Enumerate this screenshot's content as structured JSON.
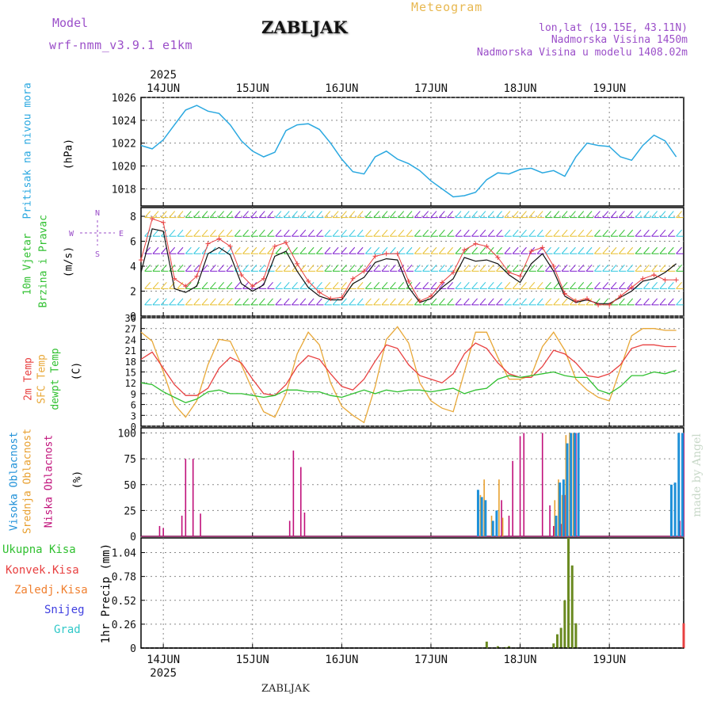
{
  "header": {
    "model_label": "Model",
    "model_name": "wrf-nmm_v3.9.1 e1km",
    "title": "ZABLJAK",
    "meteogram": "Meteogram",
    "lonlat": "lon,lat (19.15E, 43.11N)",
    "elevation": "Nadmorska Visina 1450m",
    "model_elevation": "Nadmorska Visina u modelu 1408.02m"
  },
  "time_axis": {
    "year": "2025",
    "days": [
      "14JUN",
      "15JUN",
      "16JUN",
      "17JUN",
      "18JUN",
      "19JUN"
    ]
  },
  "colors": {
    "pressure": "#2aa8e0",
    "temp2m": "#e84040",
    "sfc_temp": "#e8a838",
    "dewpoint": "#30c030",
    "high_cloud": "#1e90d8",
    "mid_cloud": "#e8a030",
    "low_cloud": "#c0107a",
    "total_precip": "#3cc03c",
    "conv_precip": "#e84040",
    "grid_precip": "#f08030",
    "snow": "#4040e0",
    "graupel": "#30c8c8",
    "wind_speed": "#111111",
    "wind_gust": "#e84040"
  },
  "footer": "ZABLJAK",
  "watermark": "made by Angel",
  "chart_data": [
    {
      "type": "line",
      "panel": "pressure",
      "ylabel_main": "Pritisak na nivou mora",
      "ylabel_unit": "(hPa)",
      "ylim": [
        1016.5,
        1026
      ],
      "yticks": [
        "1018",
        "1020",
        "1022",
        "1024",
        "1026"
      ],
      "x_hours": [
        0,
        3,
        6,
        9,
        12,
        15,
        18,
        21,
        24,
        27,
        30,
        33,
        36,
        39,
        42,
        45,
        48,
        51,
        54,
        57,
        60,
        63,
        66,
        69,
        72,
        75,
        78,
        81,
        84,
        87,
        90,
        93,
        96,
        99,
        102,
        105,
        108,
        111,
        114,
        117,
        120,
        123,
        126,
        129,
        132,
        135,
        138,
        141,
        144
      ],
      "series": [
        {
          "values": [
            1021.8,
            1021.5,
            1022.3,
            1023.6,
            1024.9,
            1025.3,
            1024.8,
            1024.6,
            1023.6,
            1022.2,
            1021.3,
            1020.8,
            1021.2,
            1023.1,
            1023.6,
            1023.7,
            1023.2,
            1022.0,
            1020.6,
            1019.5,
            1019.3,
            1020.8,
            1021.3,
            1020.6,
            1020.2,
            1019.6,
            1018.7,
            1018.0,
            1017.3,
            1017.4,
            1017.7,
            1018.8,
            1019.4,
            1019.3,
            1019.7,
            1019.8,
            1019.4,
            1019.6,
            1019.1,
            1020.8,
            1022.0,
            1021.8,
            1021.7,
            1020.8,
            1020.5,
            1021.8,
            1022.7,
            1022.2,
            1020.8
          ]
        }
      ],
      "grid": true
    },
    {
      "type": "line",
      "panel": "wind",
      "ylabel_main": "10m Vjetar",
      "ylabel_sub": "Brzina i Pravac",
      "ylabel_unit": "(m/s)",
      "compass": [
        "N",
        "W",
        "E",
        "S"
      ],
      "ylim": [
        0,
        8.7
      ],
      "yticks": [
        "0",
        "2",
        "4",
        "6",
        "8"
      ],
      "x_hours": [
        0,
        3,
        6,
        9,
        12,
        15,
        18,
        21,
        24,
        27,
        30,
        33,
        36,
        39,
        42,
        45,
        48,
        51,
        54,
        57,
        60,
        63,
        66,
        69,
        72,
        75,
        78,
        81,
        84,
        87,
        90,
        93,
        96,
        99,
        102,
        105,
        108,
        111,
        114,
        117,
        120,
        123,
        126,
        129,
        132,
        135,
        138,
        141,
        144
      ],
      "series": [
        {
          "name": "speed",
          "values": [
            3.5,
            7.0,
            6.8,
            2.2,
            1.9,
            2.4,
            5.0,
            5.5,
            4.9,
            2.6,
            2.0,
            2.5,
            4.8,
            5.2,
            3.6,
            2.3,
            1.6,
            1.3,
            1.3,
            2.6,
            3.1,
            4.3,
            4.6,
            4.5,
            2.3,
            1.1,
            1.4,
            2.3,
            3.0,
            4.7,
            4.4,
            4.5,
            4.2,
            3.3,
            2.7,
            4.2,
            5.0,
            3.6,
            1.6,
            1.1,
            1.3,
            1.0,
            1.0,
            1.5,
            2.0,
            2.8,
            3.0,
            3.5,
            4.2
          ]
        },
        {
          "name": "gust",
          "values": [
            4.5,
            7.8,
            7.5,
            3.0,
            2.4,
            3.2,
            5.8,
            6.2,
            5.6,
            3.3,
            2.4,
            3.0,
            5.6,
            5.9,
            4.2,
            2.8,
            1.9,
            1.4,
            1.5,
            3.0,
            3.6,
            4.8,
            5.0,
            5.0,
            2.8,
            1.2,
            1.6,
            2.7,
            3.5,
            5.3,
            5.8,
            5.6,
            4.7,
            3.5,
            3.2,
            5.2,
            5.5,
            4.0,
            1.8,
            1.2,
            1.4,
            0.9,
            0.9,
            1.6,
            2.3,
            3.0,
            3.3,
            2.9,
            2.9
          ]
        }
      ],
      "grid": true
    },
    {
      "type": "line",
      "panel": "temperature",
      "ylabel_lines": [
        "2m Temp",
        "SFC Temp",
        "dewpt Temp"
      ],
      "ylabel_unit": "(C)",
      "ylim": [
        0,
        30
      ],
      "yticks": [
        "0",
        "3",
        "6",
        "9",
        "12",
        "15",
        "18",
        "21",
        "24",
        "27",
        "30"
      ],
      "x_hours": [
        0,
        3,
        6,
        9,
        12,
        15,
        18,
        21,
        24,
        27,
        30,
        33,
        36,
        39,
        42,
        45,
        48,
        51,
        54,
        57,
        60,
        63,
        66,
        69,
        72,
        75,
        78,
        81,
        84,
        87,
        90,
        93,
        96,
        99,
        102,
        105,
        108,
        111,
        114,
        117,
        120,
        123,
        126,
        129,
        132,
        135,
        138,
        141,
        144
      ],
      "series": [
        {
          "name": "2m Temp",
          "values": [
            18.5,
            20.5,
            16.0,
            11.5,
            8.5,
            8.5,
            10.5,
            16.0,
            19.0,
            17.5,
            13.0,
            9.0,
            8.5,
            11.5,
            16.5,
            19.5,
            18.5,
            14.5,
            11.0,
            10.0,
            13.0,
            18.0,
            22.5,
            21.5,
            17.0,
            14.0,
            13.0,
            12.0,
            14.5,
            20.0,
            23.0,
            21.5,
            17.5,
            14.5,
            13.5,
            13.5,
            16.5,
            21.0,
            20.0,
            17.5,
            14.0,
            13.5,
            14.5,
            17.0,
            21.5,
            22.5,
            22.5,
            22.0,
            22.0
          ]
        },
        {
          "name": "SFC Temp",
          "values": [
            26.0,
            23.5,
            15.0,
            6.0,
            2.5,
            7.0,
            17.0,
            24.0,
            23.5,
            17.0,
            10.0,
            4.0,
            2.5,
            9.0,
            20.0,
            26.0,
            22.5,
            12.0,
            5.5,
            3.0,
            1.0,
            11.0,
            24.0,
            27.5,
            23.0,
            12.0,
            7.0,
            5.0,
            4.0,
            15.0,
            26.0,
            26.0,
            19.0,
            13.0,
            13.0,
            14.0,
            22.0,
            26.0,
            21.0,
            13.0,
            10.0,
            8.0,
            7.0,
            16.0,
            25.0,
            27.0,
            27.0,
            26.5,
            26.5
          ]
        },
        {
          "name": "dewpt Temp",
          "values": [
            12.0,
            11.5,
            9.5,
            8.0,
            6.5,
            7.5,
            9.5,
            10.0,
            9.0,
            9.0,
            8.5,
            8.0,
            8.5,
            10.0,
            10.0,
            9.5,
            9.5,
            8.5,
            8.0,
            9.0,
            10.0,
            9.0,
            10.0,
            9.5,
            10.0,
            10.0,
            9.5,
            10.0,
            10.5,
            9.0,
            10.0,
            10.5,
            13.0,
            14.0,
            13.5,
            14.0,
            14.5,
            15.0,
            14.0,
            13.5,
            13.5,
            10.0,
            9.0,
            11.0,
            14.0,
            14.0,
            15.0,
            14.5,
            15.5
          ]
        }
      ],
      "grid": true
    },
    {
      "type": "bar",
      "panel": "clouds",
      "ylabel_lines": [
        "Visoka Oblacnost",
        "Srednja Oblacnost",
        "Niska Oblacnost"
      ],
      "ylabel_unit": "(%)",
      "ylim": [
        0,
        105
      ],
      "yticks": [
        "0",
        "25",
        "50",
        "75",
        "100"
      ],
      "series": [
        {
          "name": "Niska Oblacnost",
          "x_hours": [
            5,
            6,
            11,
            12,
            14,
            16,
            40,
            41,
            43,
            44,
            97,
            99,
            100,
            102,
            103,
            108,
            110,
            111,
            113,
            114,
            117,
            145,
            146
          ],
          "values": [
            10,
            8,
            20,
            75,
            75,
            22,
            15,
            83,
            67,
            23,
            35,
            20,
            73,
            97,
            100,
            100,
            30,
            10,
            12,
            40,
            100,
            15,
            100
          ]
        },
        {
          "name": "Srednja Oblacnost",
          "x_hours": [
            91,
            92,
            94,
            96,
            97,
            111,
            112,
            113,
            114,
            115,
            116
          ],
          "values": [
            40,
            55,
            20,
            55,
            18,
            35,
            55,
            40,
            98,
            100,
            100
          ]
        },
        {
          "name": "Visoka Oblacnost",
          "x_hours": [
            91,
            92,
            93,
            95,
            96,
            112,
            113,
            114,
            115,
            116,
            117,
            118,
            143,
            144,
            145,
            146
          ],
          "values": [
            45,
            38,
            35,
            15,
            25,
            20,
            52,
            55,
            90,
            100,
            100,
            100,
            50,
            52,
            100,
            100
          ]
        }
      ],
      "grid": true
    },
    {
      "type": "bar",
      "panel": "precipitation",
      "legend": [
        "Ukupna Kisa",
        "Konvek.Kisa",
        "Zaledj.Kisa",
        "Snijeg",
        "Grad"
      ],
      "ylabel_unit": "1hr Precip (mm)",
      "ylim": [
        0,
        1.2
      ],
      "yticks": [
        "0",
        "0.26",
        "0.52",
        "0.78",
        "1.04"
      ],
      "series": [
        {
          "name": "Ukupna Kisa",
          "x_hours": [
            93,
            96,
            98,
            99,
            111,
            112,
            113,
            114,
            115,
            116,
            117
          ],
          "values": [
            0.07,
            0.02,
            0.01,
            0.02,
            0.05,
            0.15,
            0.22,
            0.52,
            1.2,
            0.9,
            0.27
          ]
        },
        {
          "name": "Konvek.Kisa",
          "x_hours": [
            146
          ],
          "values": [
            0.27
          ]
        }
      ],
      "grid": true
    }
  ]
}
